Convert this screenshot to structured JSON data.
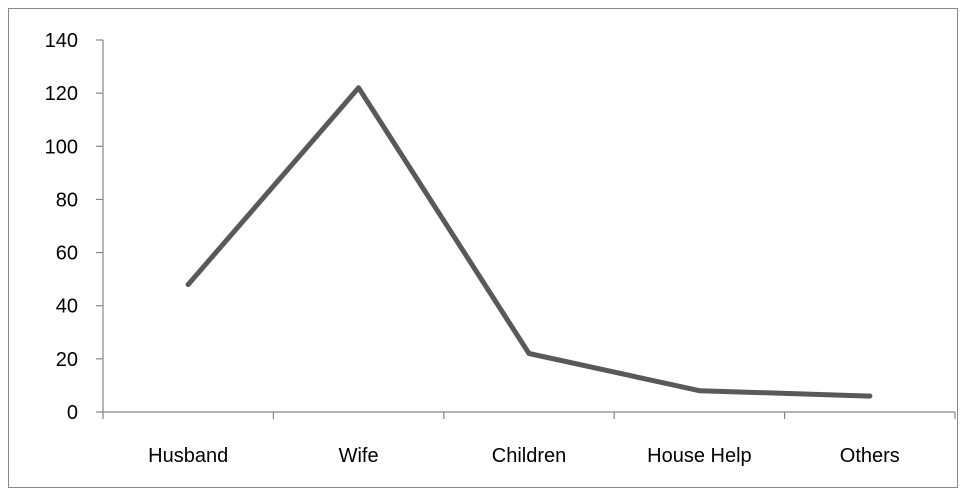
{
  "chart_data": {
    "type": "line",
    "categories": [
      "Husband",
      "Wife",
      "Children",
      "House Help",
      "Others"
    ],
    "series": [
      {
        "values": [
          48,
          122,
          22,
          8,
          6
        ],
        "color": "#595959"
      }
    ],
    "yticks": [
      "0",
      "20",
      "40",
      "60",
      "80",
      "100",
      "120",
      "140"
    ],
    "ylim": [
      0,
      140
    ],
    "grid": false,
    "legend": "none"
  }
}
